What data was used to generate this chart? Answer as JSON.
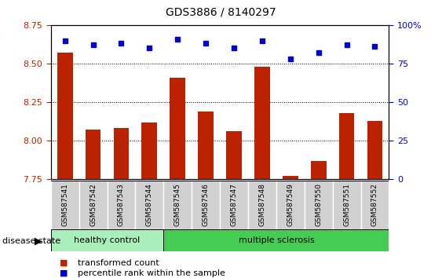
{
  "title": "GDS3886 / 8140297",
  "samples": [
    "GSM587541",
    "GSM587542",
    "GSM587543",
    "GSM587544",
    "GSM587545",
    "GSM587546",
    "GSM587547",
    "GSM587548",
    "GSM587549",
    "GSM587550",
    "GSM587551",
    "GSM587552"
  ],
  "bar_values": [
    8.57,
    8.07,
    8.08,
    8.12,
    8.41,
    8.19,
    8.06,
    8.48,
    7.77,
    7.87,
    8.18,
    8.13
  ],
  "dot_values_left": [
    8.65,
    8.62,
    8.63,
    8.6,
    8.66,
    8.63,
    8.6,
    8.65,
    8.53,
    8.57,
    8.62,
    8.61
  ],
  "ymin": 7.75,
  "ymax": 8.75,
  "y2min": 0,
  "y2max": 100,
  "yticks": [
    7.75,
    8.0,
    8.25,
    8.5,
    8.75
  ],
  "y2ticks": [
    0,
    25,
    50,
    75,
    100
  ],
  "bar_color": "#bb2200",
  "dot_color": "#0000cc",
  "healthy_count": 4,
  "healthy_label": "healthy control",
  "ms_label": "multiple sclerosis",
  "healthy_color": "#aaeebb",
  "ms_color": "#44cc55",
  "disease_label": "disease state",
  "legend_bar": "transformed count",
  "legend_dot": "percentile rank within the sample",
  "bar_bottom": 7.75,
  "bg_color": "#ffffff"
}
